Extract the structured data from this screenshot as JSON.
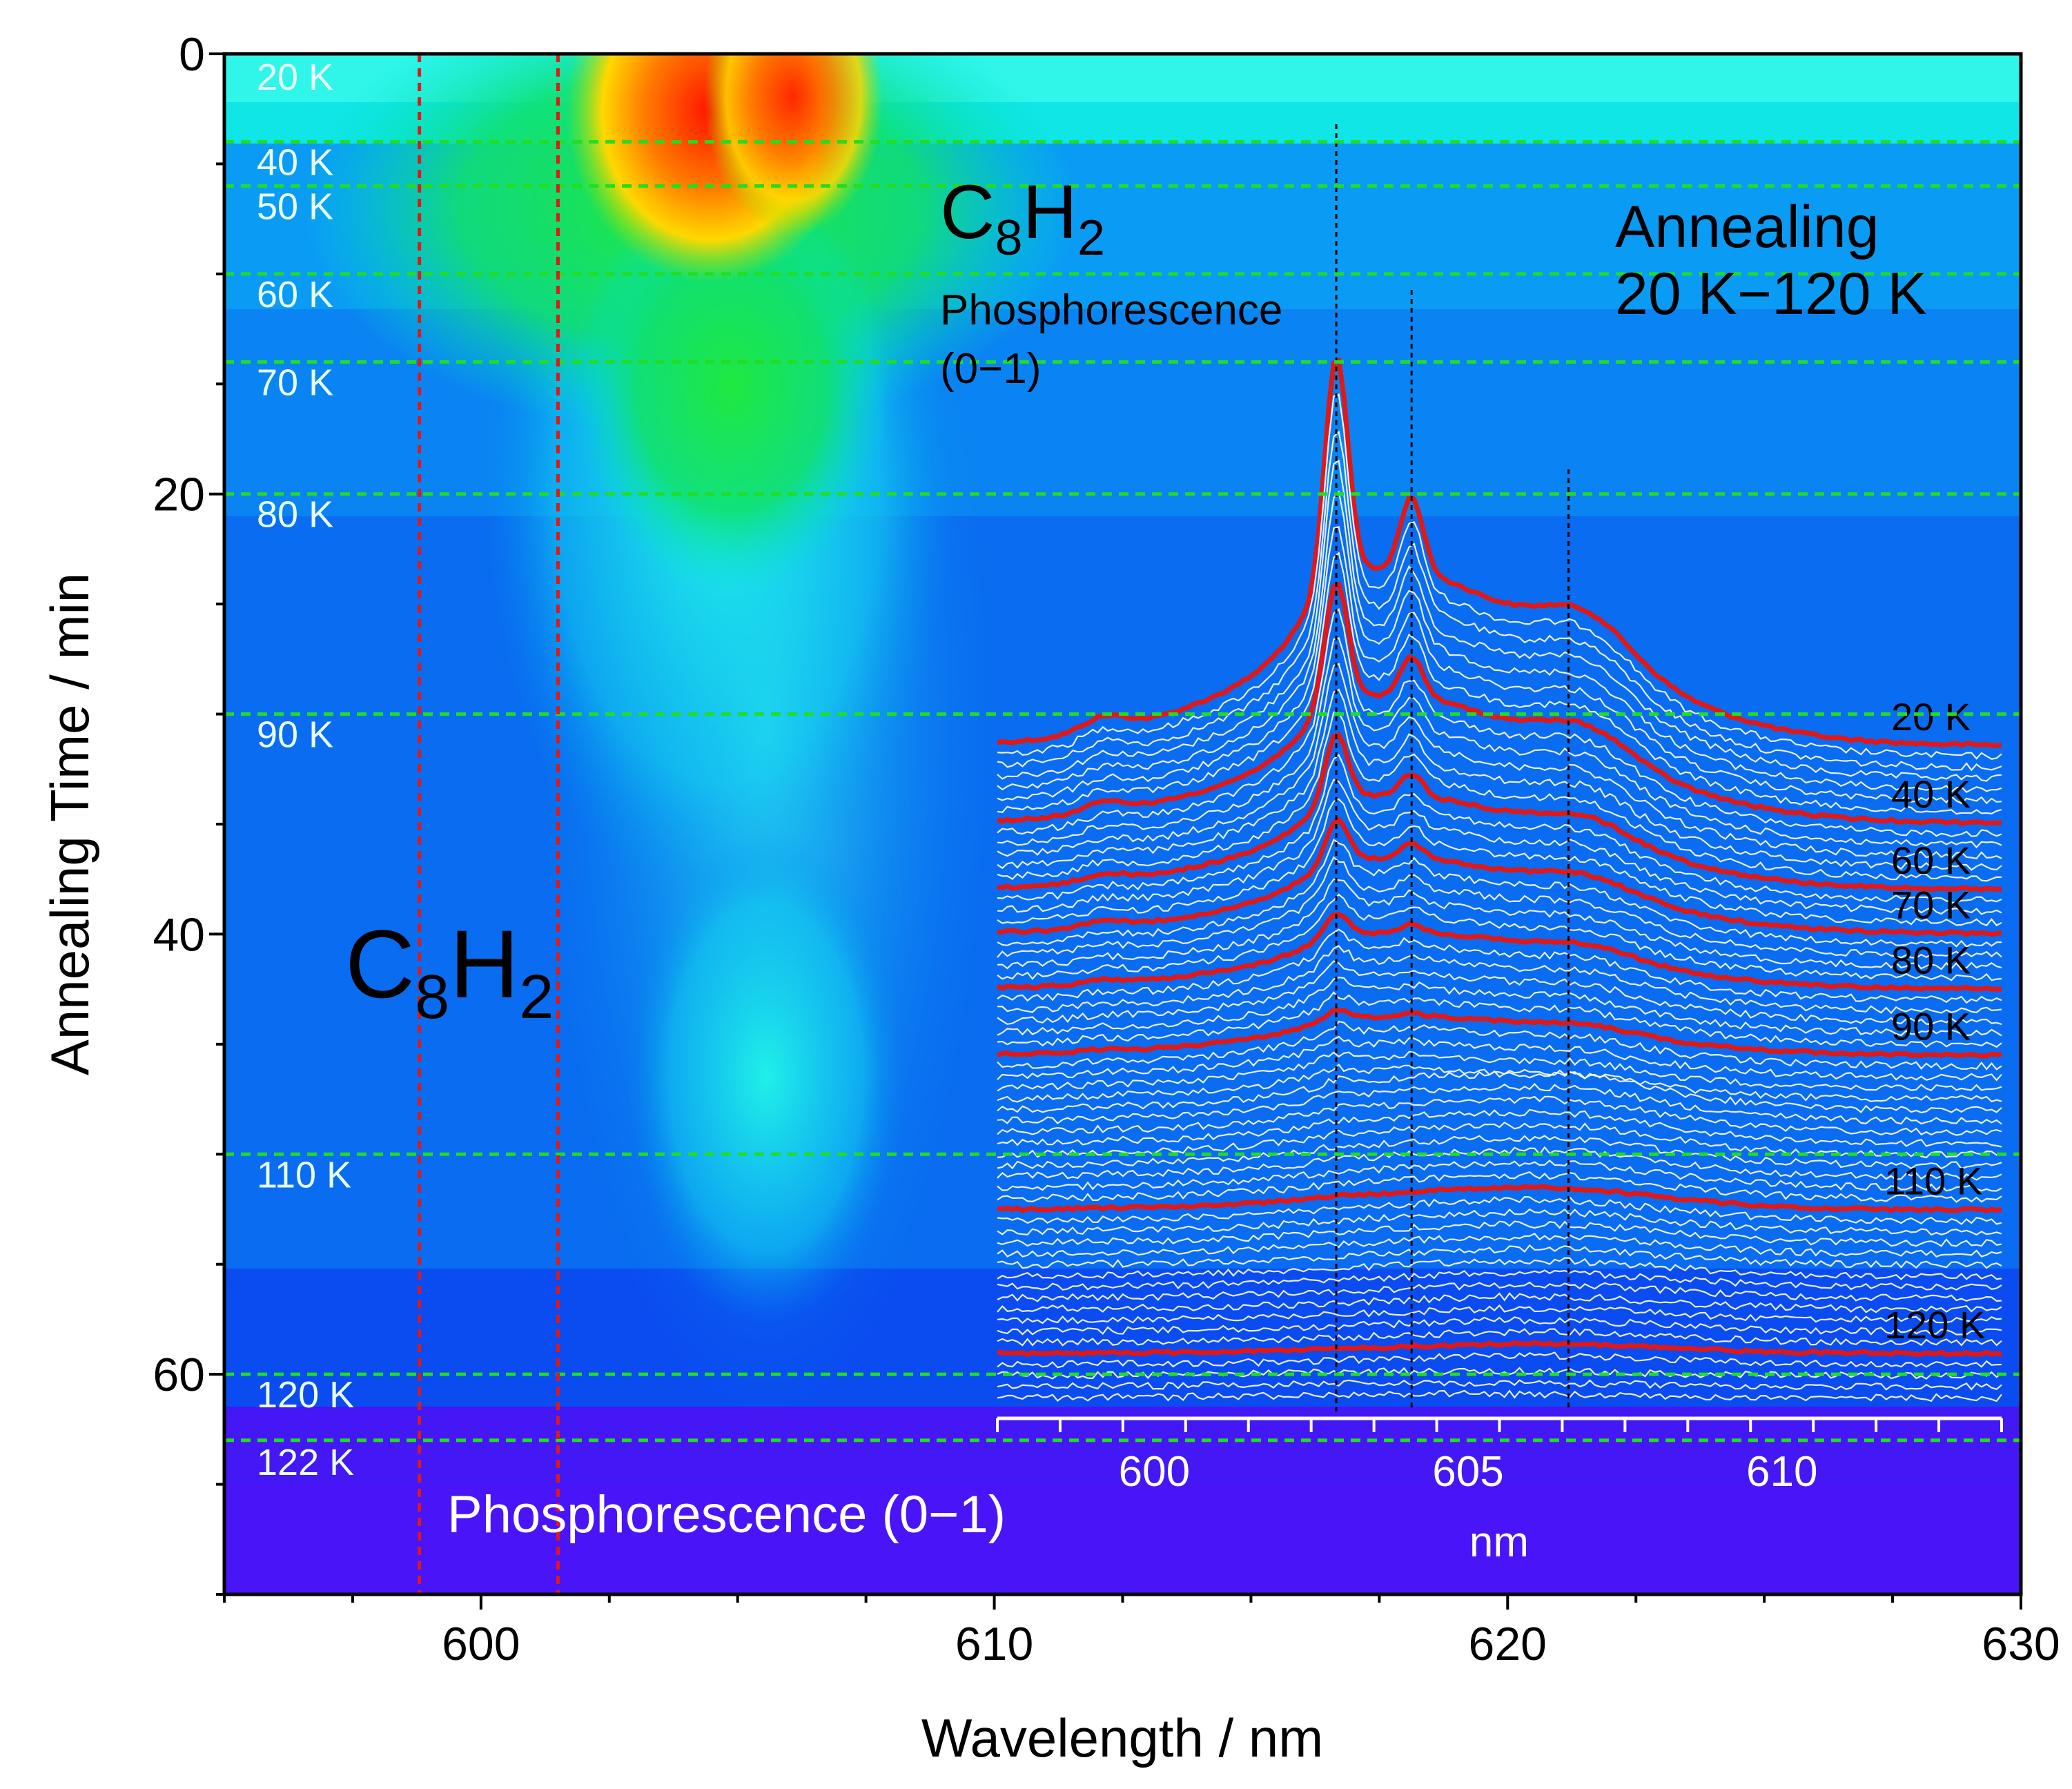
{
  "chart_data": [
    {
      "type": "heatmap",
      "title": "",
      "xlabel": "Wavelength / nm",
      "ylabel": "Annealing Time / min",
      "xlim": [
        595,
        630
      ],
      "ylim": [
        70,
        0
      ],
      "xticks": [
        600,
        610,
        620,
        630
      ],
      "yticks": [
        0,
        20,
        40,
        60
      ],
      "temperature_steps": [
        {
          "label": "20 K",
          "time": 0
        },
        {
          "label": "40 K",
          "time": 4
        },
        {
          "label": "50 K",
          "time": 6
        },
        {
          "label": "60 K",
          "time": 10
        },
        {
          "label": "70 K",
          "time": 14
        },
        {
          "label": "80 K",
          "time": 20
        },
        {
          "label": "90 K",
          "time": 30
        },
        {
          "label": "110 K",
          "time": 50
        },
        {
          "label": "120 K",
          "time": 60
        },
        {
          "label": "122 K",
          "time": 63
        }
      ],
      "marker_wavelengths": [
        598.8,
        601.5
      ],
      "annotations": {
        "species_large": "C8H2",
        "species_top": "C8H2",
        "top_caption_1": "Phosphorescence",
        "top_caption_2": "(0−1)",
        "bottom_caption": "Phosphorescence (0−1)",
        "annealing_line_1": "Annealing",
        "annealing_line_2": "20 K−120 K"
      }
    },
    {
      "type": "line",
      "title": "",
      "xlabel": "nm",
      "xlim": [
        597.5,
        613.5
      ],
      "xticks": [
        600,
        605,
        610
      ],
      "peak_markers": [
        602.9,
        604.1,
        606.6
      ],
      "series": [
        {
          "name": "20 K",
          "label": "20 K",
          "highlight": true
        },
        {
          "name": "40 K",
          "label": "40 K",
          "highlight": true
        },
        {
          "name": "60 K",
          "label": "60 K",
          "highlight": true
        },
        {
          "name": "70 K",
          "label": "70 K",
          "highlight": true
        },
        {
          "name": "80 K",
          "label": "80 K",
          "highlight": true
        },
        {
          "name": "90 K",
          "label": "90 K",
          "highlight": true
        },
        {
          "name": "110 K",
          "label": "110 K",
          "highlight": true
        },
        {
          "name": "120 K",
          "label": "120 K",
          "highlight": true
        }
      ]
    }
  ],
  "colors": {
    "red": "#e01818",
    "green_dash": "#22dd22",
    "white": "#ffffff"
  }
}
